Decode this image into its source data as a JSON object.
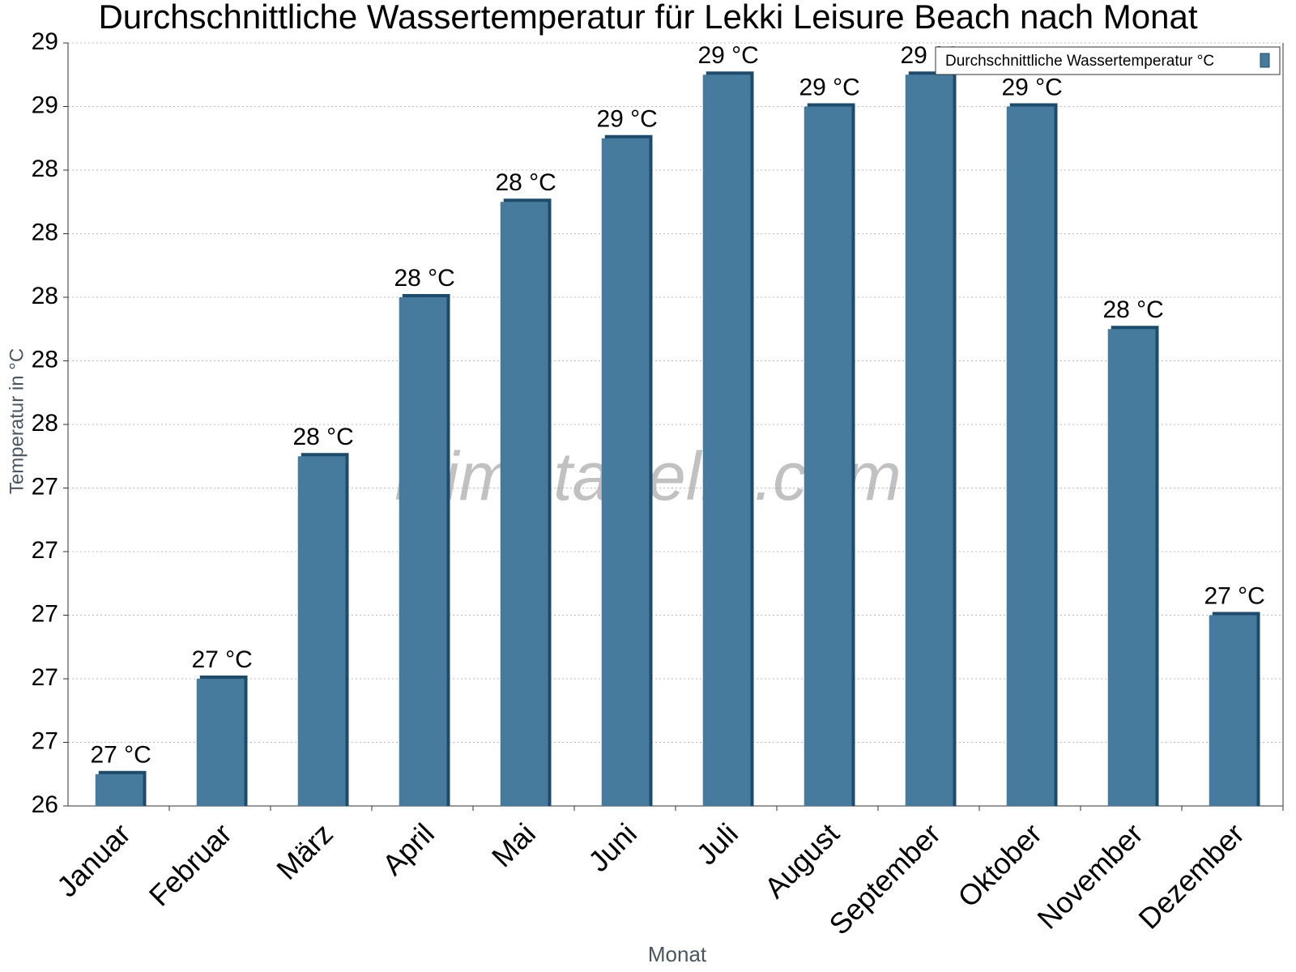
{
  "chart_data": {
    "type": "bar",
    "title": "Durchschnittliche Wassertemperatur für Lekki Leisure Beach nach Monat",
    "x_label": "Monat",
    "y_label": "Temperatur in °C",
    "watermark": "klimatabelle.com",
    "categories": [
      "Januar",
      "Februar",
      "März",
      "April",
      "Mai",
      "Juni",
      "Juli",
      "August",
      "September",
      "Oktober",
      "November",
      "Dezember"
    ],
    "series": [
      {
        "name": "Durchschnittliche Wassertemperatur °C",
        "color": "#467b9e",
        "values": [
          26.5,
          26.8,
          27.5,
          28.0,
          28.3,
          28.5,
          28.7,
          28.6,
          28.7,
          28.6,
          27.9,
          27.0
        ],
        "value_labels": [
          "27 °C",
          "27 °C",
          "28 °C",
          "28 °C",
          "28 °C",
          "29 °C",
          "29 °C",
          "29 °C",
          "29 °C",
          "29 °C",
          "28 °C",
          "27 °C"
        ]
      }
    ],
    "ylim": [
      26.4,
      28.8
    ],
    "yticks": [
      {
        "value": 26.4,
        "label": "26"
      },
      {
        "value": 26.6,
        "label": "27"
      },
      {
        "value": 26.8,
        "label": "27"
      },
      {
        "value": 27.0,
        "label": "27"
      },
      {
        "value": 27.2,
        "label": "27"
      },
      {
        "value": 27.4,
        "label": "27"
      },
      {
        "value": 27.6,
        "label": "28"
      },
      {
        "value": 27.8,
        "label": "28"
      },
      {
        "value": 28.0,
        "label": "28"
      },
      {
        "value": 28.2,
        "label": "28"
      },
      {
        "value": 28.4,
        "label": "28"
      },
      {
        "value": 28.6,
        "label": "29"
      },
      {
        "value": 28.8,
        "label": "29"
      }
    ],
    "grid": true,
    "legend": "top-right"
  }
}
